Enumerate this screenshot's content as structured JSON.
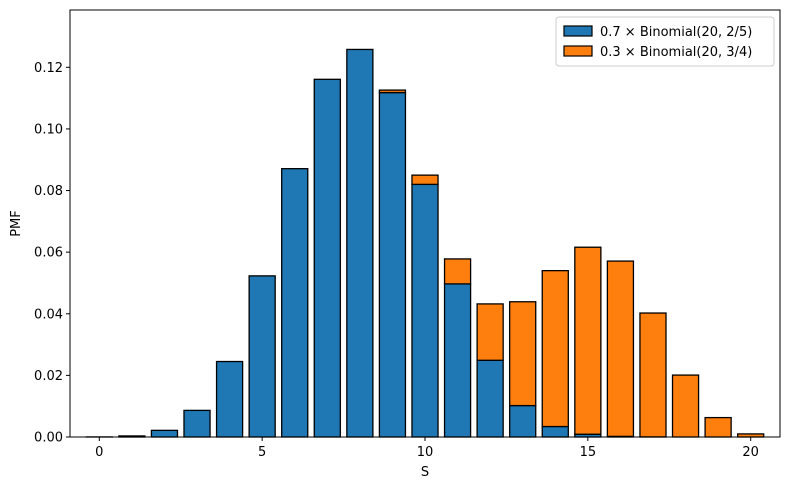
{
  "chart_data": {
    "type": "bar",
    "stacked": true,
    "xlabel": "S",
    "ylabel": "PMF",
    "xlim": [
      -0.9,
      20.9
    ],
    "ylim": [
      0,
      0.1386
    ],
    "xticks": [
      0,
      5,
      10,
      15,
      20
    ],
    "yticks": [
      0.0,
      0.02,
      0.04,
      0.06,
      0.08,
      0.1,
      0.12
    ],
    "ytick_labels": [
      "0.00",
      "0.02",
      "0.04",
      "0.06",
      "0.08",
      "0.10",
      "0.12"
    ],
    "legend_position": "top-right",
    "x": [
      0,
      1,
      2,
      3,
      4,
      5,
      6,
      7,
      8,
      9,
      10,
      11,
      12,
      13,
      14,
      15,
      16,
      17,
      18,
      19,
      20
    ],
    "series": [
      {
        "name": "0.7 × Binomial(20, 2/5)",
        "color": "#1f77b4",
        "values": [
          2.56e-05,
          0.000341,
          0.00216,
          0.00864,
          0.0245,
          0.0523,
          0.0871,
          0.1161,
          0.1258,
          0.1118,
          0.082,
          0.0497,
          0.0249,
          0.0102,
          0.0034,
          0.0009,
          0.0002,
          4e-05,
          0.0,
          0.0,
          0.0
        ]
      },
      {
        "name": "0.3 × Binomial(20, 3/4)",
        "color": "#ff7f0e",
        "values": [
          0,
          0,
          0,
          0,
          0,
          0,
          0,
          0,
          0,
          0.0008,
          0.003,
          0.0081,
          0.0183,
          0.0337,
          0.0506,
          0.0607,
          0.0569,
          0.0402,
          0.0201,
          0.0063,
          0.001
        ]
      }
    ]
  }
}
